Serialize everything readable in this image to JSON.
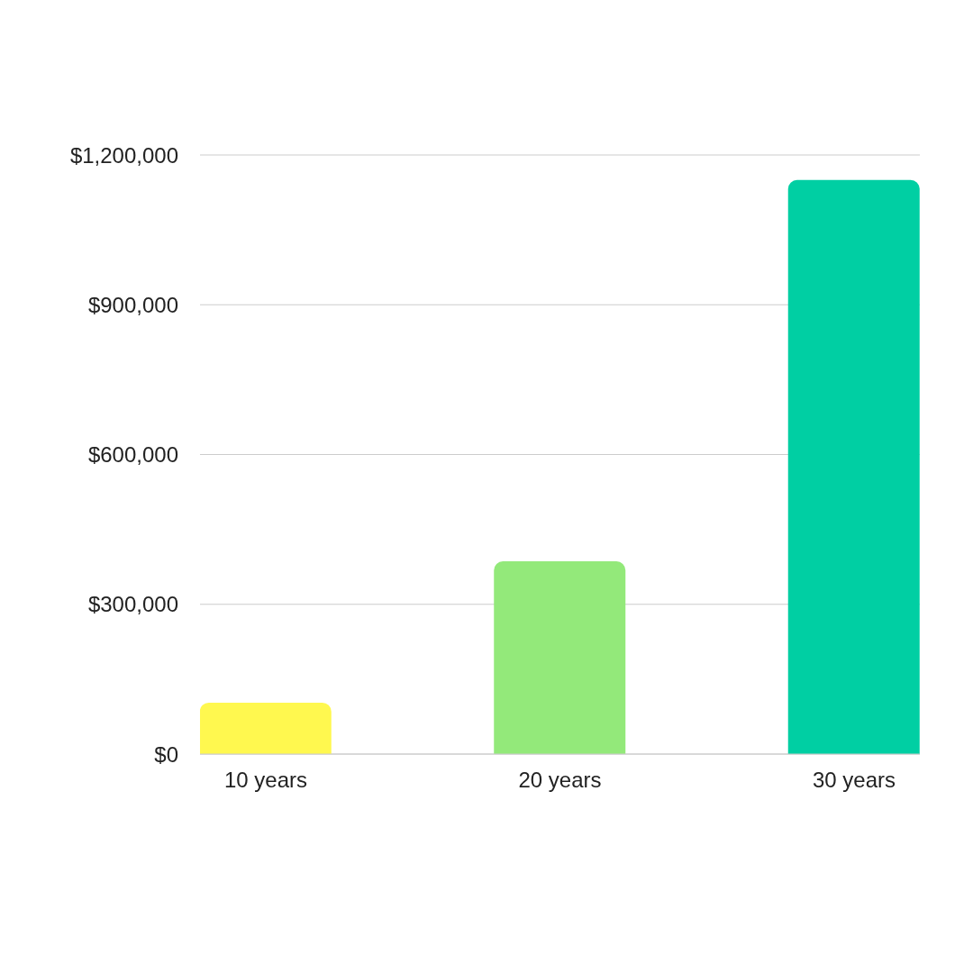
{
  "chart_data": {
    "type": "bar",
    "categories": [
      "10 years",
      "20 years",
      "30 years"
    ],
    "values": [
      103000,
      386000,
      1150000
    ],
    "colors": [
      "#fff84f",
      "#93e97a",
      "#00cfa3"
    ],
    "ylim": [
      0,
      1200000
    ],
    "yticks": [
      {
        "value": 0,
        "label": "$0"
      },
      {
        "value": 300000,
        "label": "$300,000"
      },
      {
        "value": 600000,
        "label": "$600,000"
      },
      {
        "value": 900000,
        "label": "$900,000"
      },
      {
        "value": 1200000,
        "label": "$1,200,000"
      }
    ],
    "grid": "y"
  }
}
